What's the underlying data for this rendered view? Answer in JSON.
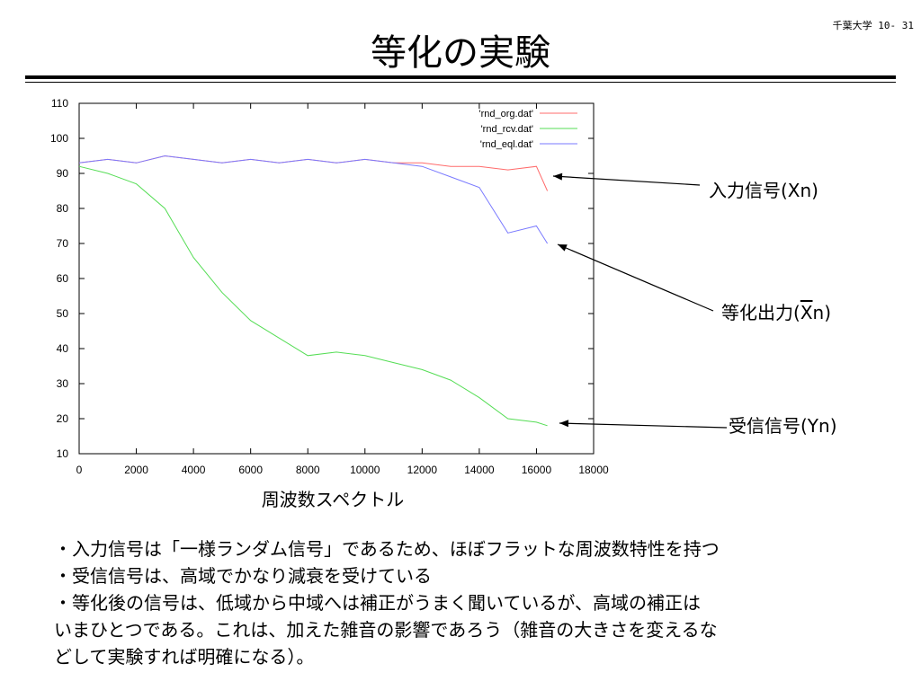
{
  "page_number": "千葉大学 10- 31",
  "title": "等化の実験",
  "chart_data": {
    "type": "line",
    "xlabel": "周波数スペクトル",
    "ylabel": "",
    "xlim": [
      0,
      18000
    ],
    "ylim": [
      10,
      110
    ],
    "x_ticks": [
      0,
      2000,
      4000,
      6000,
      8000,
      10000,
      12000,
      14000,
      16000,
      18000
    ],
    "y_ticks": [
      10,
      20,
      30,
      40,
      50,
      60,
      70,
      80,
      90,
      100,
      110
    ],
    "x_tick_labels": [
      "0",
      "2000",
      "4000",
      "6000",
      "8000",
      "10000",
      "12000",
      "14000",
      "16000",
      "18000"
    ],
    "y_tick_labels": [
      "10",
      "20",
      "30",
      "40",
      "50",
      "60",
      "70",
      "80",
      "90",
      "100",
      "110"
    ],
    "grid": false,
    "legend_position": "top-right",
    "x": [
      0,
      1000,
      2000,
      3000,
      4000,
      5000,
      6000,
      7000,
      8000,
      9000,
      10000,
      11000,
      12000,
      13000,
      14000,
      15000,
      16000,
      16384
    ],
    "series": [
      {
        "name": "'rnd_org.dat'",
        "color": "#ff6b6b",
        "values": [
          93,
          94,
          93,
          95,
          94,
          93,
          94,
          93,
          94,
          93,
          94,
          93,
          93,
          92,
          92,
          91,
          92,
          85
        ]
      },
      {
        "name": "'rnd_rcv.dat'",
        "color": "#55dd55",
        "values": [
          92,
          90,
          87,
          80,
          66,
          56,
          48,
          43,
          38,
          39,
          38,
          36,
          34,
          31,
          26,
          20,
          19,
          18
        ]
      },
      {
        "name": "'rnd_eql.dat'",
        "color": "#7a7aff",
        "values": [
          93,
          94,
          93,
          95,
          94,
          93,
          94,
          93,
          94,
          93,
          94,
          93,
          92,
          89,
          86,
          73,
          75,
          70
        ]
      }
    ]
  },
  "annotations": {
    "input_label": "入力信号(Xn)",
    "output_label_prefix": "等化出力(",
    "output_label_overline": "X",
    "output_label_suffix": "n)",
    "received_label": "受信信号(Yn)"
  },
  "bullets": [
    "・入力信号は「一様ランダム信号」であるため、ほぼフラットな周波数特性を持つ",
    "・受信信号は、高域でかなり減衰を受けている",
    "・等化後の信号は、低域から中域へは補正がうまく聞いているが、高域の補正は",
    "いまひとつである。これは、加えた雑音の影響であろう（雑音の大きさを変えるな",
    "どして実験すれば明確になる）。"
  ]
}
